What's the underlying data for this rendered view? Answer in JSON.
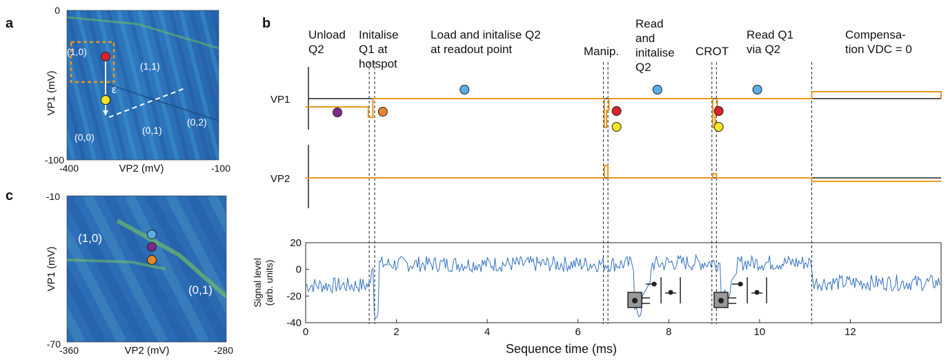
{
  "panels": {
    "a": {
      "letter": "a",
      "xlabel": "VP2 (mV)",
      "ylabel": "VP1 (mV)",
      "x_ticks": [
        "-400",
        "-100"
      ],
      "y_ticks": [
        "0",
        "-100"
      ],
      "regions": [
        "(1,0)",
        "(1,1)",
        "(0,0)",
        "(0,1)",
        "(0,2)"
      ],
      "epsilon": "ε"
    },
    "c": {
      "letter": "c",
      "xlabel": "VP2 (mV)",
      "ylabel": "VP1 (mV)",
      "x_ticks": [
        "-360",
        "-280"
      ],
      "y_ticks": [
        "-10",
        "-70"
      ],
      "regions": [
        "(1,0)",
        "(0,1)"
      ]
    },
    "b": {
      "letter": "b"
    }
  },
  "chart_data": [
    {
      "type": "heatmap",
      "title": "",
      "xlabel": "VP2 (mV)",
      "ylabel": "VP1 (mV)",
      "xlim": [
        -400,
        -100
      ],
      "ylim": [
        -100,
        0
      ],
      "labels": [
        "(1,0)",
        "(1,1)",
        "(0,0)",
        "(0,1)",
        "(0,2)"
      ]
    },
    {
      "type": "line",
      "title": "",
      "steps": [
        "Unload Q2",
        "Initalise Q1 at hotspot",
        "Load and initalise Q2 at readout point",
        "Manip.",
        "Read and initalise Q2",
        "CROT",
        "Read Q1 via Q2",
        "Compensa- tion VDC = 0"
      ],
      "step_lines": [
        "Unload\nQ2",
        "Initalise\nQ1 at\nhotspot",
        "Load and initalise Q2\nat readout point",
        "Manip.",
        "Read\nand\ninitalise\nQ2",
        "CROT",
        "Read Q1\nvia Q2",
        "Compensa-\ntion VDC = 0"
      ],
      "series": [
        {
          "name": "VP1",
          "color": "#e8951f"
        },
        {
          "name": "VP2",
          "color": "#e8951f"
        }
      ],
      "dividers_ms": [
        1.4,
        1.52,
        6.56,
        6.66,
        8.95,
        9.05,
        11.15
      ],
      "xlim": [
        0,
        14
      ],
      "ylim": [
        -40,
        20
      ],
      "xlabel": "Sequence time (ms)",
      "ylabel": "Signal level (arb. units)",
      "ylabel_lines": [
        "Signal level",
        "(arb. units)"
      ],
      "x_ticks": [
        0,
        2,
        4,
        6,
        8,
        10,
        12
      ],
      "y_ticks": [
        20,
        0,
        -20,
        -40
      ],
      "signal_level_segments": [
        {
          "x0": 0,
          "x1": 1.45,
          "level": -12
        },
        {
          "x0": 1.55,
          "x1": 6.6,
          "level": 4
        },
        {
          "x0": 6.6,
          "x1": 7.3,
          "level": 4
        },
        {
          "x0": 7.9,
          "x1": 9.0,
          "level": 5
        },
        {
          "x0": 9.05,
          "x1": 11.15,
          "level": 5
        },
        {
          "x0": 11.15,
          "x1": 14,
          "level": -10
        }
      ],
      "dips": [
        {
          "x": 1.55,
          "y": -38
        },
        {
          "x": 7.35,
          "y": -37
        },
        {
          "x": 9.3,
          "y": -24
        }
      ]
    },
    {
      "type": "heatmap",
      "title": "",
      "xlabel": "VP2 (mV)",
      "ylabel": "VP1 (mV)",
      "xlim": [
        -360,
        -280
      ],
      "ylim": [
        -70,
        -10
      ],
      "labels": [
        "(1,0)",
        "(0,1)"
      ]
    }
  ],
  "colors": {
    "orange": "#e8951f",
    "blue": "#2f6fc0",
    "red": "#d8232a",
    "yellow": "#f6e523",
    "purple": "#7a2a8a",
    "lightblue": "#5aaee6",
    "dotorange": "#e8862a"
  }
}
